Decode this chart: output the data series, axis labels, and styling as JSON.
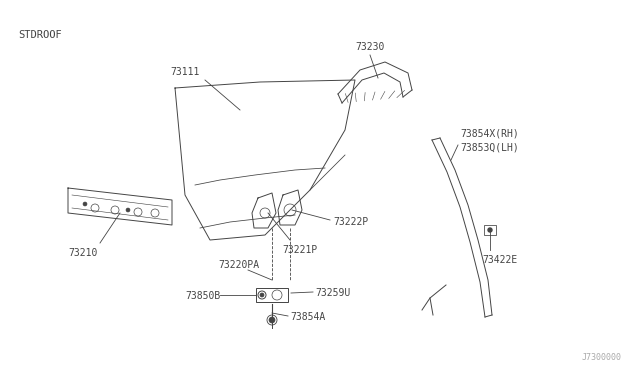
{
  "bg_color": "#ffffff",
  "line_color": "#444444",
  "text_color": "#444444",
  "title_label": "STDROOF",
  "footer_label": "J7300000",
  "figsize": [
    6.4,
    3.72
  ],
  "dpi": 100,
  "xlim": [
    0,
    640
  ],
  "ylim": [
    0,
    372
  ]
}
